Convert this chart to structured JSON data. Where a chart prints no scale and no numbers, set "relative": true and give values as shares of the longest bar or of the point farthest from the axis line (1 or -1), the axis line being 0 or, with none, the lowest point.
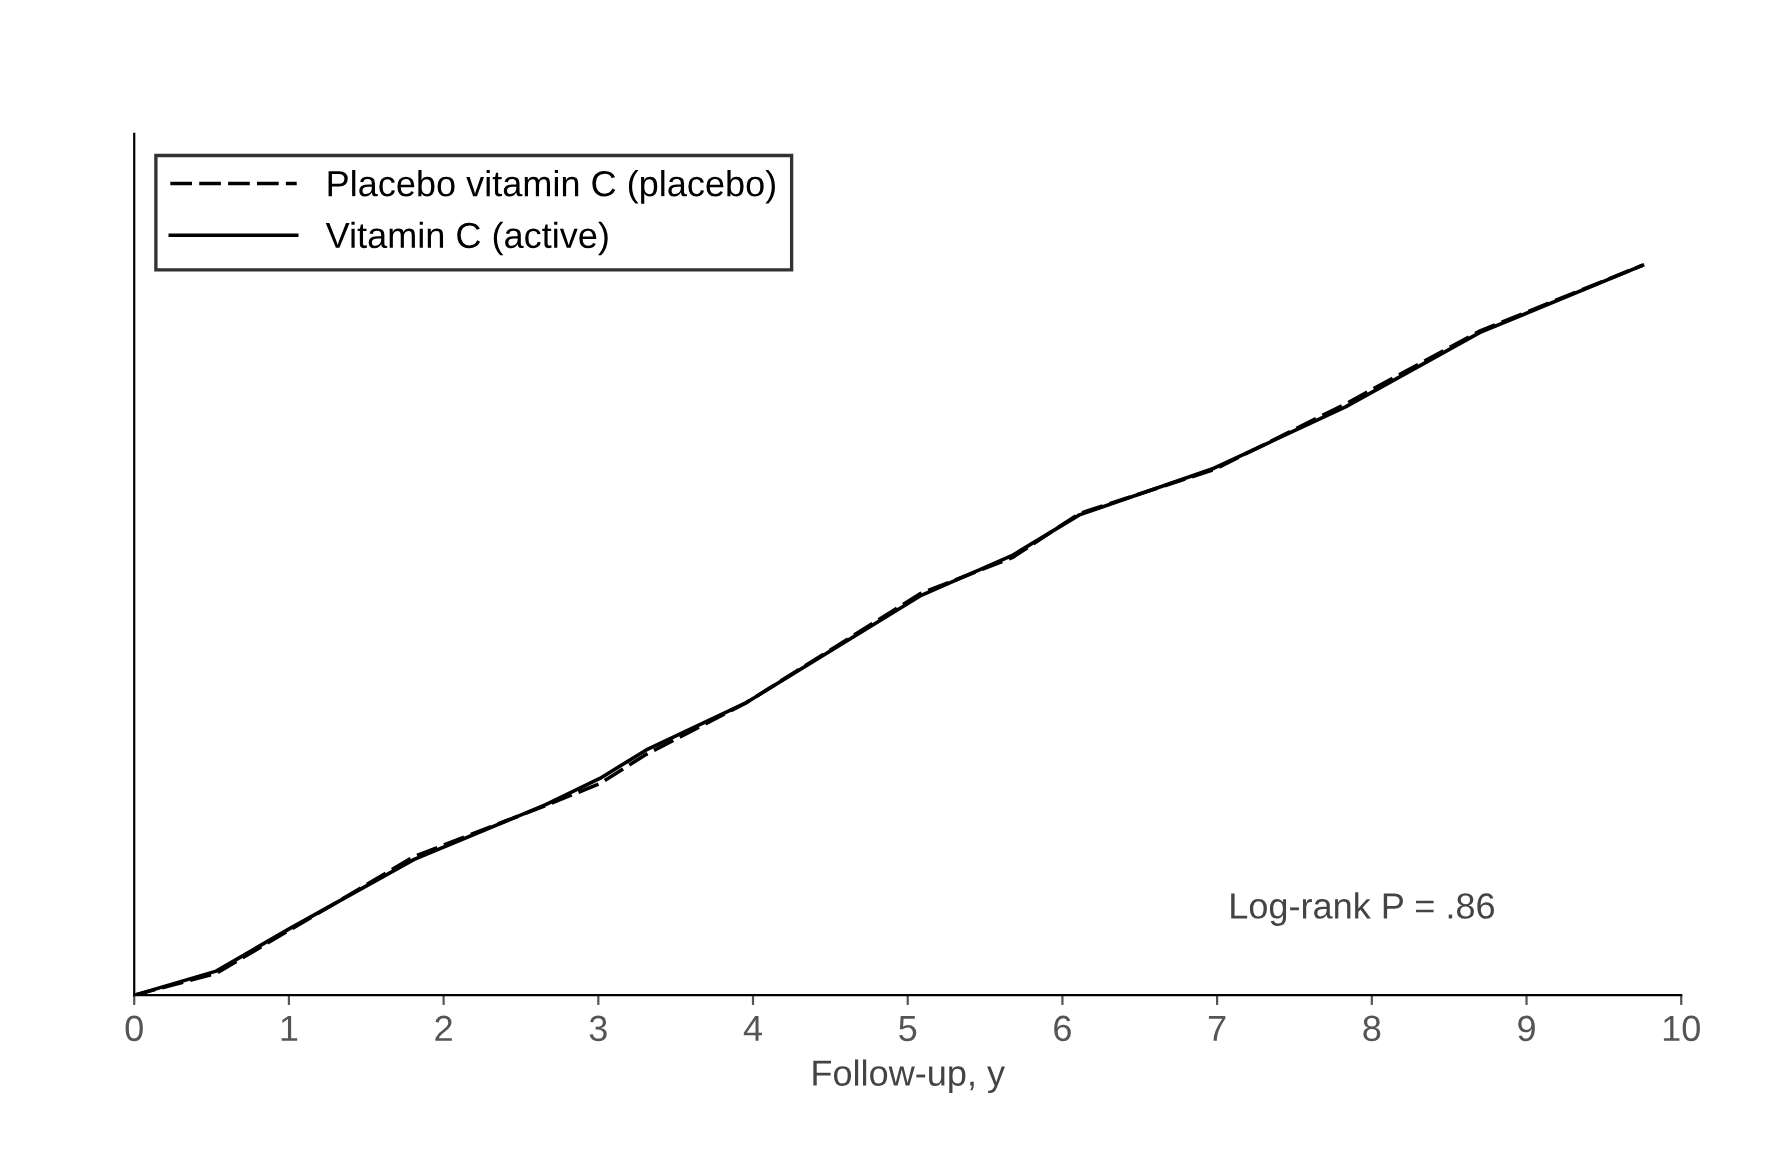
{
  "chart_data": {
    "type": "line",
    "xlabel": "Follow-up, y",
    "relative": true,
    "xlim": [
      0,
      10
    ],
    "xticks": [
      0,
      1,
      2,
      3,
      4,
      5,
      6,
      7,
      8,
      9,
      10
    ],
    "legend": "top left",
    "grid": false,
    "marker": "none",
    "annotations": [
      "Log-rank P = .86"
    ],
    "series": [
      {
        "name": "Placebo vitamin C (placebo)",
        "color": "#000000",
        "line_style": "dashed",
        "x": [
          0,
          0.53,
          1.01,
          1.81,
          2.66,
          3.01,
          3.31,
          3.95,
          5.08,
          5.68,
          6.11,
          6.98,
          7.83,
          8.7,
          9.75
        ],
        "values": [
          0,
          0.03,
          0.09,
          0.19,
          0.26,
          0.29,
          0.33,
          0.4,
          0.55,
          0.6,
          0.66,
          0.72,
          0.81,
          0.91,
          1.0
        ]
      },
      {
        "name": "Vitamin C (active)",
        "color": "#000000",
        "line_style": "solid",
        "x": [
          0,
          0.53,
          1.01,
          1.81,
          2.66,
          3.01,
          3.31,
          3.95,
          5.08,
          5.68,
          6.11,
          6.98,
          7.83,
          8.7,
          9.75
        ],
        "values": [
          0,
          0.033,
          0.092,
          0.186,
          0.261,
          0.297,
          0.336,
          0.4,
          0.547,
          0.603,
          0.658,
          0.722,
          0.806,
          0.908,
          1.0
        ]
      }
    ]
  }
}
